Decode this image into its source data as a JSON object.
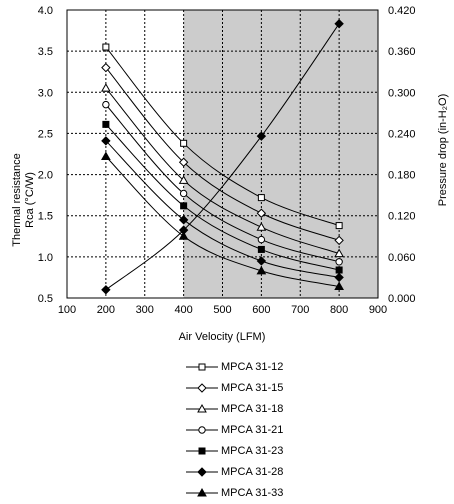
{
  "chart_data": {
    "type": "line",
    "xlabel": "Air Velocity (LFM)",
    "ylabel_left": "Thermal resistance\nRca (°C/W)",
    "ylabel_right": "Pressure drop  (in-H₂O)",
    "xlim": [
      100,
      900
    ],
    "ylim_left": [
      0.5,
      4.0
    ],
    "ylim_right": [
      0.0,
      0.42
    ],
    "x_ticks": [
      "100",
      "200",
      "300",
      "400",
      "500",
      "600",
      "700",
      "800",
      "900"
    ],
    "y_left_ticks": [
      "0.5",
      "1.0",
      "1.5",
      "2.0",
      "2.5",
      "3.0",
      "3.5",
      "4.0"
    ],
    "y_right_ticks": [
      "0.000",
      "0.060",
      "0.120",
      "0.180",
      "0.240",
      "0.300",
      "0.360",
      "0.420"
    ],
    "grid": true,
    "shaded_region": {
      "x_from": 400,
      "x_to": 900
    },
    "series": [
      {
        "name": "MPCA 31-12",
        "marker": "square-open",
        "axis": "left",
        "x": [
          200,
          400,
          600,
          800
        ],
        "y": [
          3.55,
          2.38,
          1.72,
          1.38
        ]
      },
      {
        "name": "MPCA 31-15",
        "marker": "diamond-open",
        "axis": "left",
        "x": [
          200,
          400,
          600,
          800
        ],
        "y": [
          3.3,
          2.15,
          1.53,
          1.2
        ]
      },
      {
        "name": "MPCA 31-18",
        "marker": "triangle-open",
        "axis": "left",
        "x": [
          200,
          400,
          600,
          800
        ],
        "y": [
          3.05,
          1.93,
          1.36,
          1.04
        ]
      },
      {
        "name": "MPCA 31-21",
        "marker": "circle-open",
        "axis": "left",
        "x": [
          200,
          400,
          600,
          800
        ],
        "y": [
          2.85,
          1.77,
          1.21,
          0.94
        ]
      },
      {
        "name": "MPCA 31-23",
        "marker": "square-filled",
        "axis": "left",
        "x": [
          200,
          400,
          600,
          800
        ],
        "y": [
          2.61,
          1.62,
          1.09,
          0.84
        ]
      },
      {
        "name": "MPCA 31-28",
        "marker": "diamond-filled",
        "axis": "left",
        "x": [
          200,
          400,
          600,
          800
        ],
        "y": [
          2.41,
          1.45,
          0.95,
          0.75
        ]
      },
      {
        "name": "MPCA 31-33",
        "marker": "triangle-filled",
        "axis": "left",
        "x": [
          200,
          400,
          600,
          800
        ],
        "y": [
          2.22,
          1.25,
          0.83,
          0.64
        ]
      }
    ],
    "pressure_series": {
      "marker": "diamond-filled",
      "axis": "right",
      "x": [
        200,
        400,
        600,
        800
      ],
      "y": [
        0.012,
        0.099,
        0.236,
        0.4
      ]
    }
  }
}
